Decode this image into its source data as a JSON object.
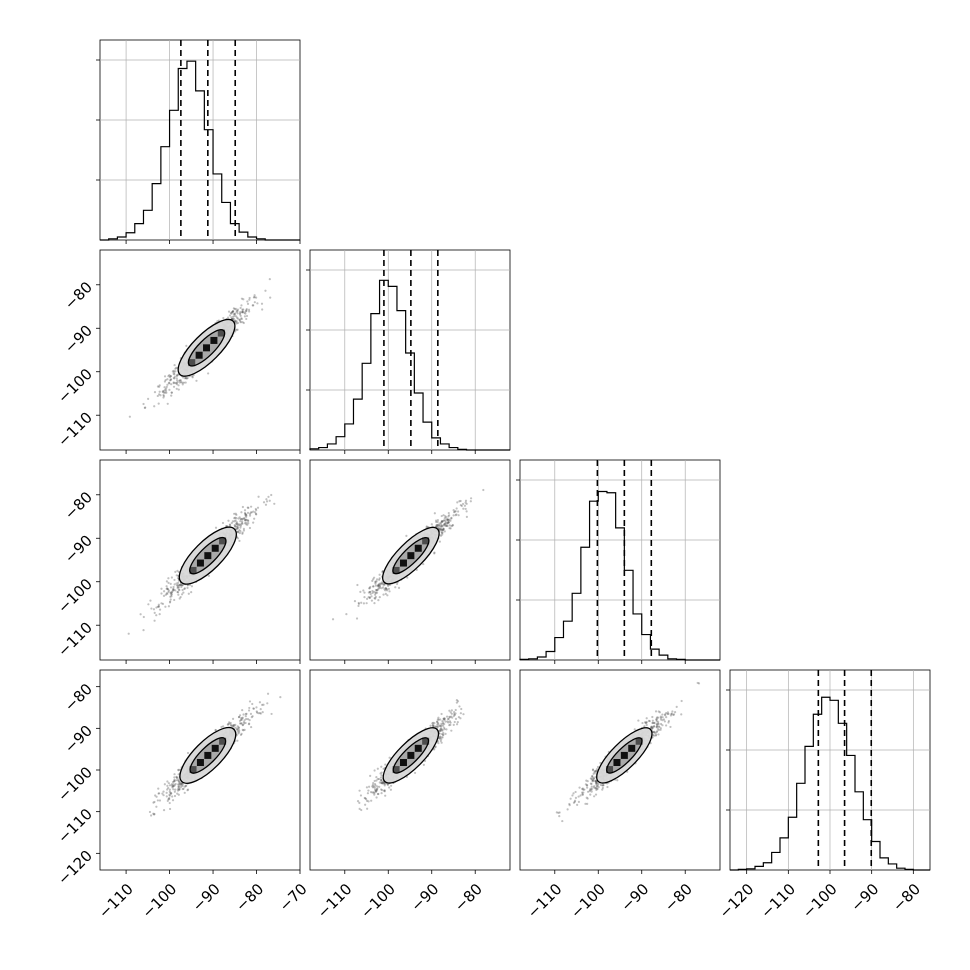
{
  "chart_data": {
    "type": "corner",
    "variables": 4,
    "grid": true,
    "colors": {
      "hist": "#000000",
      "grid": "#b0b0b0",
      "scatter": "#4d4d4d",
      "contour_fill_outer": "#d9d9d9",
      "contour_fill_inner": "#a6a6a6",
      "contour_core": "#000000"
    },
    "histograms": [
      {
        "variable": 1,
        "xlim": [
          -116,
          -70
        ],
        "bin_edges": [
          -116,
          -114,
          -112,
          -110,
          -108,
          -106,
          -104,
          -102,
          -100,
          -98,
          -96,
          -94,
          -92,
          -90,
          -88,
          -86,
          -84,
          -82,
          -80,
          -78,
          -76,
          -74,
          -72,
          -70
        ],
        "counts": [
          0,
          2,
          5,
          12,
          27,
          49,
          93,
          154,
          214,
          283,
          295,
          246,
          182,
          109,
          62,
          27,
          13,
          5,
          2,
          0,
          0,
          0,
          0
        ],
        "quantiles": [
          -97.4,
          -91.2,
          -84.9
        ],
        "ymax": 330
      },
      {
        "variable": 2,
        "xlim": [
          -118,
          -72
        ],
        "bin_edges": [
          -118,
          -116,
          -114,
          -112,
          -110,
          -108,
          -106,
          -104,
          -102,
          -100,
          -98,
          -96,
          -94,
          -92,
          -90,
          -88,
          -86,
          -84,
          -82,
          -80,
          -78,
          -76,
          -74,
          -72
        ],
        "counts": [
          2,
          4,
          10,
          22,
          43,
          84,
          143,
          225,
          280,
          270,
          230,
          160,
          94,
          46,
          20,
          10,
          4,
          1,
          0,
          0,
          0,
          0,
          0
        ],
        "quantiles": [
          -101.0,
          -94.8,
          -88.6
        ],
        "ymax": 330
      },
      {
        "variable": 3,
        "xlim": [
          -118,
          -72
        ],
        "bin_edges": [
          -118,
          -116,
          -114,
          -112,
          -110,
          -108,
          -106,
          -104,
          -102,
          -100,
          -98,
          -96,
          -94,
          -92,
          -90,
          -88,
          -86,
          -84,
          -82,
          -80,
          -78,
          -76,
          -74,
          -72
        ],
        "counts": [
          1,
          2,
          5,
          14,
          37,
          64,
          110,
          186,
          262,
          278,
          276,
          218,
          148,
          76,
          42,
          18,
          8,
          2,
          1,
          0,
          0,
          0,
          0
        ],
        "quantiles": [
          -100.2,
          -94.0,
          -87.8
        ],
        "ymax": 330
      },
      {
        "variable": 4,
        "xlim": [
          -124,
          -76
        ],
        "bin_edges": [
          -124,
          -122,
          -120,
          -118,
          -116,
          -114,
          -112,
          -110,
          -108,
          -106,
          -104,
          -102,
          -100,
          -98,
          -96,
          -94,
          -92,
          -90,
          -88,
          -86,
          -84,
          -82,
          -80,
          -78,
          -76
        ],
        "counts": [
          0,
          1,
          2,
          6,
          12,
          29,
          53,
          87,
          143,
          204,
          257,
          285,
          280,
          242,
          189,
          129,
          83,
          47,
          20,
          10,
          3,
          1,
          0,
          0
        ],
        "quantiles": [
          -102.8,
          -96.5,
          -90.1
        ],
        "ymax": 330
      }
    ],
    "panels_2d": [
      {
        "row": 2,
        "col": 1,
        "xlim": [
          -116,
          -70
        ],
        "ylim": [
          -118,
          -72
        ],
        "ellipses": [
          {
            "cx": -91.5,
            "cy": -94.5,
            "len": 17,
            "wid": 2.4
          },
          {
            "cx": -91.5,
            "cy": -94.5,
            "len": 11,
            "wid": 1.4
          }
        ]
      },
      {
        "row": 3,
        "col": 1,
        "xlim": [
          -116,
          -70
        ],
        "ylim": [
          -118,
          -72
        ],
        "ellipses": [
          {
            "cx": -91.2,
            "cy": -94.0,
            "len": 17,
            "wid": 2.5
          },
          {
            "cx": -91.2,
            "cy": -94.0,
            "len": 11,
            "wid": 1.4
          }
        ]
      },
      {
        "row": 3,
        "col": 2,
        "xlim": [
          -118,
          -72
        ],
        "ylim": [
          -118,
          -72
        ],
        "ellipses": [
          {
            "cx": -94.8,
            "cy": -94.0,
            "len": 17,
            "wid": 2.3
          },
          {
            "cx": -94.8,
            "cy": -94.0,
            "len": 11,
            "wid": 1.3
          }
        ]
      },
      {
        "row": 4,
        "col": 1,
        "xlim": [
          -116,
          -70
        ],
        "ylim": [
          -124,
          -76
        ],
        "ellipses": [
          {
            "cx": -91.2,
            "cy": -96.5,
            "len": 17,
            "wid": 2.5
          },
          {
            "cx": -91.2,
            "cy": -96.5,
            "len": 11,
            "wid": 1.4
          }
        ]
      },
      {
        "row": 4,
        "col": 2,
        "xlim": [
          -118,
          -72
        ],
        "ylim": [
          -124,
          -76
        ],
        "ellipses": [
          {
            "cx": -94.8,
            "cy": -96.5,
            "len": 17,
            "wid": 2.3
          },
          {
            "cx": -94.8,
            "cy": -96.5,
            "len": 11,
            "wid": 1.3
          }
        ]
      },
      {
        "row": 4,
        "col": 3,
        "xlim": [
          -118,
          -72
        ],
        "ylim": [
          -124,
          -76
        ],
        "ellipses": [
          {
            "cx": -94.0,
            "cy": -96.5,
            "len": 17,
            "wid": 2.3
          },
          {
            "cx": -94.0,
            "cy": -96.5,
            "len": 11,
            "wid": 1.3
          }
        ]
      }
    ],
    "tick_labels": {
      "x_col1": [
        "−110",
        "−100",
        "−90",
        "−80",
        "−70"
      ],
      "x_col2": [
        "−110",
        "−100",
        "−90",
        "−80"
      ],
      "x_col3": [
        "−110",
        "−100",
        "−90",
        "−80"
      ],
      "x_col4": [
        "−120",
        "−110",
        "−100",
        "−90",
        "−80"
      ],
      "y_row2": [
        "−80",
        "−90",
        "−100",
        "−110"
      ],
      "y_row3": [
        "−80",
        "−90",
        "−100",
        "−110"
      ],
      "y_row4": [
        "−80",
        "−90",
        "−100",
        "−110",
        "−120"
      ]
    },
    "tick_values": {
      "x_col1": [
        -110,
        -100,
        -90,
        -80,
        -70
      ],
      "x_col2": [
        -110,
        -100,
        -90,
        -80
      ],
      "x_col3": [
        -110,
        -100,
        -90,
        -80
      ],
      "x_col4": [
        -120,
        -110,
        -100,
        -90,
        -80
      ],
      "y_row2": [
        -80,
        -90,
        -100,
        -110
      ],
      "y_row3": [
        -80,
        -90,
        -100,
        -110
      ],
      "y_row4": [
        -80,
        -90,
        -100,
        -110,
        -120
      ]
    }
  }
}
